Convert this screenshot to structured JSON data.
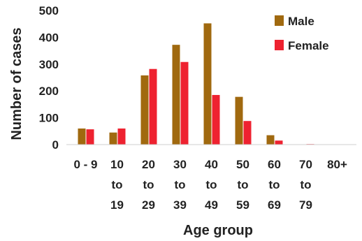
{
  "chart_data": {
    "type": "bar",
    "title": "",
    "xlabel": "Age group",
    "ylabel": "Number of cases",
    "ylim": [
      0,
      500
    ],
    "yticks": [
      0,
      100,
      200,
      300,
      400,
      500
    ],
    "grid": false,
    "legend_position": "top-right",
    "categories": [
      [
        "0 - 9"
      ],
      [
        "10",
        "to",
        "19"
      ],
      [
        "20",
        "to",
        "29"
      ],
      [
        "30",
        "to",
        "39"
      ],
      [
        "40",
        "to",
        "49"
      ],
      [
        "50",
        "to",
        "59"
      ],
      [
        "60",
        "to",
        "69"
      ],
      [
        "70",
        "to",
        "79"
      ],
      [
        "80+"
      ]
    ],
    "series": [
      {
        "name": "Male",
        "color": "#a0690f",
        "values": [
          60,
          45,
          258,
          372,
          452,
          178,
          35,
          0,
          0
        ]
      },
      {
        "name": "Female",
        "color": "#ee2230",
        "values": [
          57,
          60,
          282,
          308,
          185,
          88,
          15,
          2,
          0
        ]
      }
    ]
  }
}
